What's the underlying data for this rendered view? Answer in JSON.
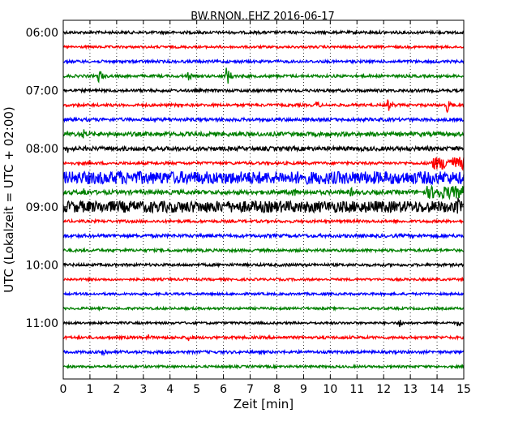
{
  "chart_data": {
    "type": "line",
    "title": "BW.RNON..EHZ 2016-06-17",
    "xlabel": "Zeit  [min]",
    "ylabel": "UTC (Lokalzeit = UTC + 02:00)",
    "xlim": [
      0,
      15
    ],
    "x_ticks": [
      "0",
      "1",
      "2",
      "3",
      "4",
      "5",
      "6",
      "7",
      "8",
      "9",
      "10",
      "11",
      "12",
      "13",
      "14",
      "15"
    ],
    "y_ticks": [
      "06:00",
      "07:00",
      "08:00",
      "09:00",
      "10:00",
      "11:00"
    ],
    "grid": true,
    "row_interval_min": 15,
    "trace_colors": [
      "#000000",
      "#ff0000",
      "#0000ff",
      "#008000"
    ],
    "rows": [
      {
        "start": "06:00",
        "color": "#000000",
        "amplitude": 0.12,
        "events": []
      },
      {
        "start": "06:15",
        "color": "#ff0000",
        "amplitude": 0.1,
        "events": []
      },
      {
        "start": "06:30",
        "color": "#0000ff",
        "amplitude": 0.12,
        "events": []
      },
      {
        "start": "06:45",
        "color": "#008000",
        "amplitude": 0.12,
        "events": [
          {
            "t": 1.35,
            "amp": 0.6
          },
          {
            "t": 4.7,
            "amp": 0.4
          },
          {
            "t": 6.1,
            "amp": 1.0
          }
        ]
      },
      {
        "start": "07:00",
        "color": "#000000",
        "amplitude": 0.12,
        "events": []
      },
      {
        "start": "07:15",
        "color": "#ff0000",
        "amplitude": 0.12,
        "events": [
          {
            "t": 9.5,
            "amp": 0.4
          },
          {
            "t": 12.2,
            "amp": 0.5
          },
          {
            "t": 14.4,
            "amp": 0.6
          }
        ]
      },
      {
        "start": "07:30",
        "color": "#0000ff",
        "amplitude": 0.14,
        "events": []
      },
      {
        "start": "07:45",
        "color": "#008000",
        "amplitude": 0.18,
        "events": [
          {
            "t": 0.75,
            "amp": 0.5
          }
        ]
      },
      {
        "start": "08:00",
        "color": "#000000",
        "amplitude": 0.18,
        "events": [
          {
            "t": 0.2,
            "amp": 0.4
          }
        ]
      },
      {
        "start": "08:15",
        "color": "#ff0000",
        "amplitude": 0.12,
        "events": [],
        "noisy_from": 13.8,
        "noisy_amp": 0.55
      },
      {
        "start": "08:30",
        "color": "#0000ff",
        "amplitude": 0.55,
        "events": [
          {
            "t": 2.1,
            "amp": 0.9
          }
        ]
      },
      {
        "start": "08:45",
        "color": "#008000",
        "amplitude": 0.18,
        "events": [
          {
            "t": 0.8,
            "amp": 0.5
          },
          {
            "t": 8.6,
            "amp": 0.5
          },
          {
            "t": 10.8,
            "amp": 0.4
          }
        ],
        "noisy_from": 13.6,
        "noisy_amp": 0.55
      },
      {
        "start": "09:00",
        "color": "#000000",
        "amplitude": 0.5,
        "events": [
          {
            "t": 14.8,
            "amp": 0.8
          }
        ]
      },
      {
        "start": "09:15",
        "color": "#ff0000",
        "amplitude": 0.12,
        "events": []
      },
      {
        "start": "09:30",
        "color": "#0000ff",
        "amplitude": 0.14,
        "events": []
      },
      {
        "start": "09:45",
        "color": "#008000",
        "amplitude": 0.12,
        "events": []
      },
      {
        "start": "10:00",
        "color": "#000000",
        "amplitude": 0.12,
        "events": []
      },
      {
        "start": "10:15",
        "color": "#ff0000",
        "amplitude": 0.1,
        "events": []
      },
      {
        "start": "10:30",
        "color": "#0000ff",
        "amplitude": 0.1,
        "events": []
      },
      {
        "start": "10:45",
        "color": "#008000",
        "amplitude": 0.1,
        "events": []
      },
      {
        "start": "11:00",
        "color": "#000000",
        "amplitude": 0.1,
        "events": [
          {
            "t": 12.6,
            "amp": 0.4
          },
          {
            "t": 14.8,
            "amp": 0.3
          }
        ]
      },
      {
        "start": "11:15",
        "color": "#ff0000",
        "amplitude": 0.12,
        "events": [
          {
            "t": 3.2,
            "amp": 0.3
          },
          {
            "t": 4.7,
            "amp": 0.35
          }
        ]
      },
      {
        "start": "11:30",
        "color": "#0000ff",
        "amplitude": 0.12,
        "events": [
          {
            "t": 1.5,
            "amp": 0.5
          }
        ]
      },
      {
        "start": "11:45",
        "color": "#008000",
        "amplitude": 0.1,
        "events": []
      }
    ]
  }
}
